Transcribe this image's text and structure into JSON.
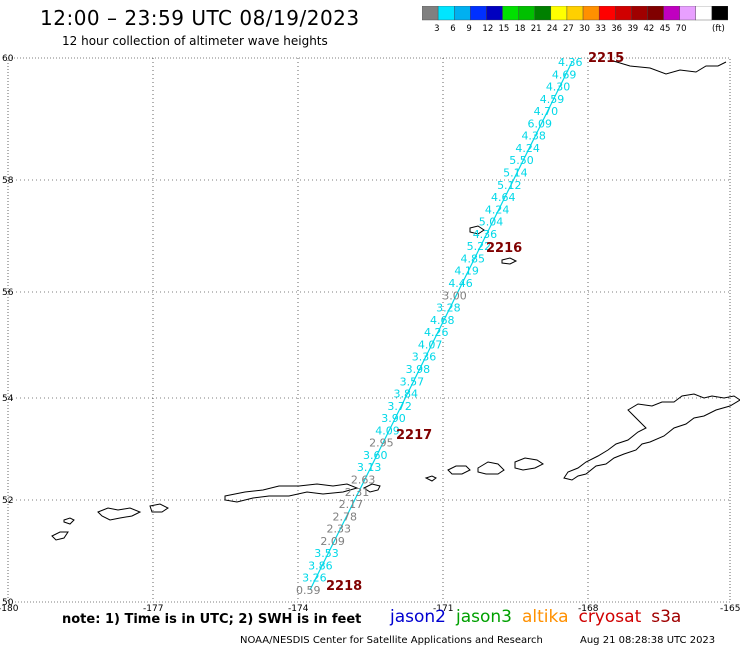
{
  "title": "12:00 – 23:59 UTC 08/19/2023",
  "subtitle": "12 hour collection of altimeter wave heights",
  "colorbar": {
    "ticks": [
      "3",
      "6",
      "9",
      "12",
      "15",
      "18",
      "21",
      "24",
      "27",
      "30",
      "33",
      "36",
      "39",
      "42",
      "45",
      "70"
    ],
    "unit": "(ft)",
    "colors": [
      "#808080",
      "#00e5ff",
      "#00b0f0",
      "#0030ff",
      "#0000c0",
      "#00e000",
      "#00c000",
      "#008000",
      "#ffff00",
      "#ffd000",
      "#ff9000",
      "#ff0000",
      "#d00000",
      "#a00000",
      "#800000",
      "#c000c0",
      "#e8a0ff",
      "#ffffff",
      "#000000"
    ]
  },
  "axes": {
    "x_ticks": [
      "-180",
      "-177",
      "-174",
      "-171",
      "-168",
      "-165"
    ],
    "y_ticks": [
      "60",
      "58",
      "56",
      "54",
      "52",
      "50"
    ]
  },
  "time_labels": [
    "2215",
    "2216",
    "2217",
    "2218"
  ],
  "track_points": [
    {
      "v": "4.36",
      "c": "c"
    },
    {
      "v": "4.69",
      "c": "c"
    },
    {
      "v": "4.30",
      "c": "c"
    },
    {
      "v": "4.59",
      "c": "c"
    },
    {
      "v": "4.70",
      "c": "c"
    },
    {
      "v": "6.09",
      "c": "c"
    },
    {
      "v": "4.38",
      "c": "c"
    },
    {
      "v": "4.24",
      "c": "c"
    },
    {
      "v": "5.50",
      "c": "c"
    },
    {
      "v": "5.14",
      "c": "c"
    },
    {
      "v": "5.12",
      "c": "c"
    },
    {
      "v": "4.64",
      "c": "c"
    },
    {
      "v": "4.24",
      "c": "c"
    },
    {
      "v": "5.04",
      "c": "c"
    },
    {
      "v": "4.36",
      "c": "c"
    },
    {
      "v": "5.22",
      "c": "c"
    },
    {
      "v": "4.85",
      "c": "c"
    },
    {
      "v": "4.19",
      "c": "c"
    },
    {
      "v": "4.46",
      "c": "c"
    },
    {
      "v": "3.00",
      "c": "g"
    },
    {
      "v": "3.28",
      "c": "c"
    },
    {
      "v": "4.68",
      "c": "c"
    },
    {
      "v": "4.26",
      "c": "c"
    },
    {
      "v": "4.07",
      "c": "c"
    },
    {
      "v": "3.36",
      "c": "c"
    },
    {
      "v": "3.98",
      "c": "c"
    },
    {
      "v": "3.57",
      "c": "c"
    },
    {
      "v": "3.84",
      "c": "c"
    },
    {
      "v": "3.72",
      "c": "c"
    },
    {
      "v": "3.90",
      "c": "c"
    },
    {
      "v": "4.09",
      "c": "c"
    },
    {
      "v": "2.95",
      "c": "g"
    },
    {
      "v": "3.60",
      "c": "c"
    },
    {
      "v": "3.13",
      "c": "c"
    },
    {
      "v": "2.63",
      "c": "g"
    },
    {
      "v": "2.31",
      "c": "g"
    },
    {
      "v": "2.17",
      "c": "g"
    },
    {
      "v": "2.78",
      "c": "g"
    },
    {
      "v": "2.33",
      "c": "g"
    },
    {
      "v": "2.09",
      "c": "g"
    },
    {
      "v": "3.53",
      "c": "c"
    },
    {
      "v": "3.86",
      "c": "c"
    },
    {
      "v": "3.26",
      "c": "c"
    },
    {
      "v": "0.59",
      "c": "g"
    }
  ],
  "colors": {
    "cyan": "#00d8e8",
    "gray": "#808080",
    "time": "#800000",
    "grid": "#606060"
  },
  "note": "note: 1) Time is in UTC; 2) SWH is in feet",
  "legend": [
    {
      "name": "jason2",
      "color": "#0000d0"
    },
    {
      "name": "jason3",
      "color": "#00a000"
    },
    {
      "name": "altika",
      "color": "#ff9000"
    },
    {
      "name": "cryosat",
      "color": "#d00000"
    },
    {
      "name": "s3a",
      "color": "#a00000"
    }
  ],
  "credit": "NOAA/NESDIS Center for Satellite Applications and Research",
  "credit_time": "Aug 21 08:28:38 UTC 2023"
}
